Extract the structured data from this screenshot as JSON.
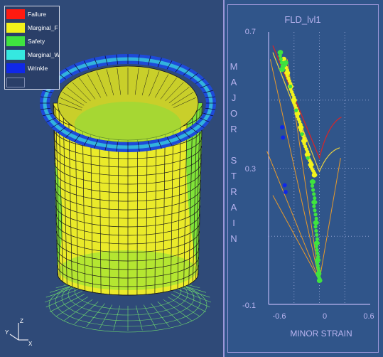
{
  "legend": {
    "items": [
      {
        "label": "Failure",
        "color": "#ff1a10"
      },
      {
        "label": "Marginal_F",
        "color": "#f2f21a"
      },
      {
        "label": "Safety",
        "color": "#3fe33f"
      },
      {
        "label": "Marginal_W",
        "color": "#35e8e0"
      },
      {
        "label": "Wrinkle",
        "color": "#1028e8"
      }
    ]
  },
  "triad": {
    "z": "Z",
    "y": "Y",
    "x": "X"
  },
  "chart_data": {
    "type": "scatter",
    "title": "FLD_lvl1",
    "xlabel": "MINOR STRAIN",
    "ylabel": "MAJOR STRAIN",
    "xlim": [
      -0.6,
      0.6
    ],
    "ylim": [
      -0.1,
      0.7
    ],
    "x_ticks": [
      "-0.6",
      "0",
      "0.6"
    ],
    "y_ticks": [
      "0.7",
      "0.3",
      "-0.1"
    ],
    "grid": true,
    "series": [
      {
        "color": "#f2f21a",
        "points": [
          [
            -0.42,
            0.62
          ],
          [
            -0.38,
            0.58
          ],
          [
            -0.34,
            0.54
          ],
          [
            -0.3,
            0.5
          ],
          [
            -0.26,
            0.46
          ],
          [
            -0.22,
            0.42
          ],
          [
            -0.18,
            0.38
          ],
          [
            -0.14,
            0.34
          ],
          [
            -0.1,
            0.31
          ],
          [
            -0.06,
            0.28
          ]
        ]
      },
      {
        "color": "#3fe33f",
        "points": [
          [
            -0.46,
            0.64
          ],
          [
            -0.44,
            0.59
          ],
          [
            -0.4,
            0.61
          ],
          [
            -0.08,
            0.26
          ],
          [
            -0.06,
            0.2
          ],
          [
            -0.04,
            0.14
          ],
          [
            -0.03,
            0.08
          ],
          [
            -0.02,
            0.03
          ],
          [
            -0.01,
            -0.01
          ],
          [
            0.0,
            -0.03
          ]
        ]
      },
      {
        "color": "#1028e8",
        "points": [
          [
            -0.44,
            0.42
          ],
          [
            -0.43,
            0.39
          ],
          [
            -0.41,
            0.25
          ],
          [
            -0.4,
            0.23
          ]
        ]
      }
    ]
  }
}
